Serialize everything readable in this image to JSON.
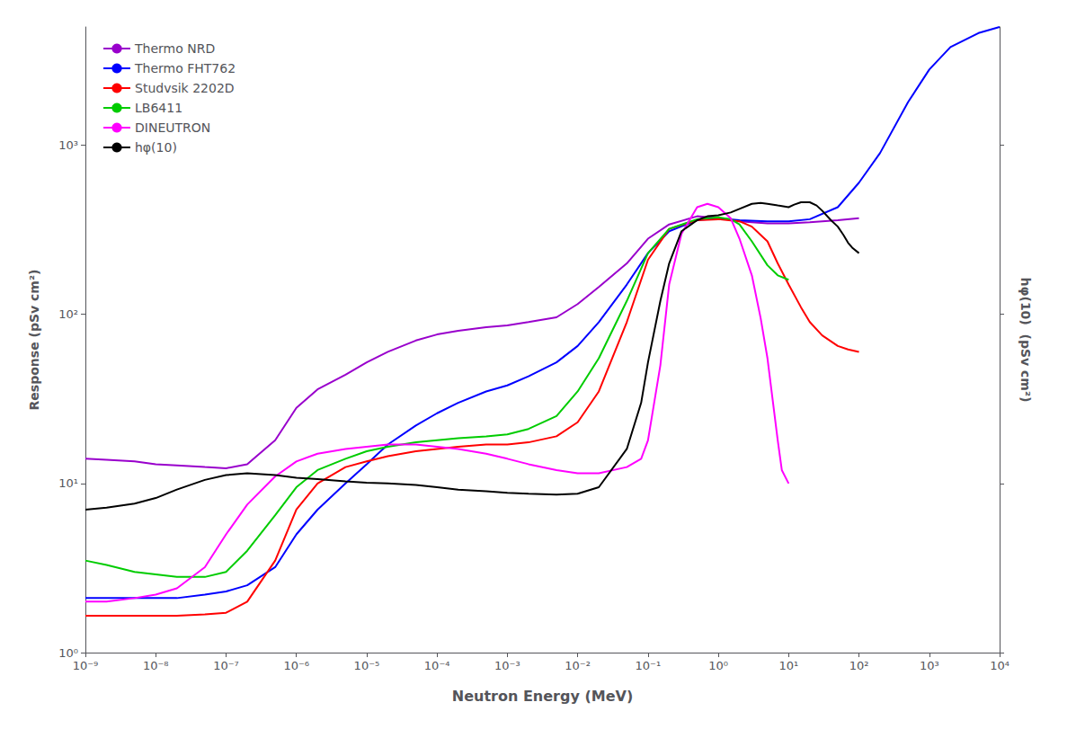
{
  "chart_data": {
    "type": "line",
    "xlabel": "Neutron Energy (MeV)",
    "ylabel": "Response (pSv cm²)",
    "y2label": "hφ(10)  (pSv cm²)",
    "log": true,
    "grid": false,
    "legend": "upper left",
    "xlim": [
      1e-09,
      10000
    ],
    "xticks": [
      {
        "value": 1e-09,
        "label": "10⁻⁹"
      },
      {
        "value": 1e-08,
        "label": "10⁻⁸"
      },
      {
        "value": 1e-07,
        "label": "10⁻⁷"
      },
      {
        "value": 1e-06,
        "label": "10⁻⁶"
      },
      {
        "value": 1e-05,
        "label": "10⁻⁵"
      },
      {
        "value": 0.0001,
        "label": "10⁻⁴"
      },
      {
        "value": 0.001,
        "label": "10⁻³"
      },
      {
        "value": 0.01,
        "label": "10⁻²"
      },
      {
        "value": 0.1,
        "label": "10⁻¹"
      },
      {
        "value": 1,
        "label": "10⁰"
      },
      {
        "value": 10,
        "label": "10¹"
      },
      {
        "value": 100,
        "label": "10²"
      },
      {
        "value": 1000,
        "label": "10³"
      },
      {
        "value": 10000,
        "label": "10⁴"
      }
    ],
    "ylim": [
      1,
      5000
    ],
    "yticks": [
      {
        "value": 1,
        "label": "10⁰"
      },
      {
        "value": 10,
        "label": "10¹"
      },
      {
        "value": 100,
        "label": "10²"
      },
      {
        "value": 1000,
        "label": "10³"
      }
    ],
    "y2lim": [
      1,
      5000
    ],
    "series": [
      {
        "name": "Thermo NRD",
        "color": "#9900cc",
        "x": [
          1e-09,
          2e-09,
          5e-09,
          1e-08,
          2e-08,
          5e-08,
          1e-07,
          2e-07,
          5e-07,
          1e-06,
          2e-06,
          5e-06,
          1e-05,
          2e-05,
          5e-05,
          0.0001,
          0.0002,
          0.0005,
          0.001,
          0.002,
          0.005,
          0.01,
          0.02,
          0.05,
          0.1,
          0.2,
          0.5,
          1.0,
          2.0,
          5.0,
          10.0,
          20.0,
          50.0,
          100.0
        ],
        "values": [
          14.0,
          13.8,
          13.5,
          13.0,
          12.8,
          12.5,
          12.3,
          13.0,
          18.0,
          28.0,
          36.0,
          44.0,
          52.0,
          60.0,
          70.0,
          76.0,
          80.0,
          84.0,
          86.0,
          90.0,
          96.0,
          115.0,
          145.0,
          200.0,
          280.0,
          340.0,
          380.0,
          370.0,
          355.0,
          345.0,
          345.0,
          350.0,
          360.0,
          370.0
        ]
      },
      {
        "name": "Thermo FHT762",
        "color": "#0000ff",
        "x": [
          1e-09,
          2e-09,
          5e-09,
          1e-08,
          2e-08,
          5e-08,
          1e-07,
          2e-07,
          5e-07,
          1e-06,
          2e-06,
          5e-06,
          1e-05,
          2e-05,
          5e-05,
          0.0001,
          0.0002,
          0.0005,
          0.001,
          0.002,
          0.005,
          0.01,
          0.02,
          0.05,
          0.1,
          0.2,
          0.5,
          1.0,
          2.0,
          5.0,
          10.0,
          20.0,
          50.0,
          100.0,
          200.0,
          500.0,
          1000.0,
          2000.0,
          5000.0,
          10000.0
        ],
        "values": [
          2.1,
          2.1,
          2.1,
          2.1,
          2.1,
          2.2,
          2.3,
          2.5,
          3.2,
          5.0,
          7.0,
          10.0,
          13.0,
          17.0,
          22.0,
          26.0,
          30.0,
          35.0,
          38.0,
          43.0,
          52.0,
          65.0,
          90.0,
          150.0,
          230.0,
          310.0,
          360.0,
          370.0,
          360.0,
          355.0,
          355.0,
          365.0,
          430.0,
          600.0,
          900.0,
          1800.0,
          2800.0,
          3800.0,
          4600.0,
          5000.0
        ]
      },
      {
        "name": "Studvsik 2202D",
        "color": "#ff0000",
        "x": [
          1e-09,
          2e-09,
          5e-09,
          1e-08,
          2e-08,
          5e-08,
          1e-07,
          2e-07,
          5e-07,
          1e-06,
          2e-06,
          5e-06,
          1e-05,
          2e-05,
          5e-05,
          0.0001,
          0.0002,
          0.0005,
          0.001,
          0.002,
          0.005,
          0.01,
          0.02,
          0.05,
          0.1,
          0.2,
          0.5,
          1.0,
          2.0,
          3.0,
          5.0,
          7.0,
          10.0,
          15.0,
          20.0,
          30.0,
          50.0,
          70.0,
          100.0
        ],
        "values": [
          1.65,
          1.65,
          1.65,
          1.65,
          1.65,
          1.68,
          1.72,
          2.0,
          3.5,
          7.0,
          10.0,
          12.5,
          13.5,
          14.5,
          15.5,
          16.0,
          16.5,
          17.0,
          17.0,
          17.5,
          19.0,
          23.0,
          35.0,
          90.0,
          210.0,
          320.0,
          360.0,
          365.0,
          355.0,
          330.0,
          270.0,
          200.0,
          150.0,
          110.0,
          90.0,
          75.0,
          65.0,
          62.0,
          60.0
        ]
      },
      {
        "name": "LB6411",
        "color": "#00cc00",
        "x": [
          1e-09,
          2e-09,
          5e-09,
          1e-08,
          2e-08,
          5e-08,
          1e-07,
          2e-07,
          5e-07,
          1e-06,
          2e-06,
          5e-06,
          1e-05,
          2e-05,
          5e-05,
          0.0001,
          0.0002,
          0.0005,
          0.001,
          0.002,
          0.005,
          0.01,
          0.02,
          0.05,
          0.1,
          0.2,
          0.5,
          1.0,
          1.5,
          2.0,
          3.0,
          5.0,
          7.0,
          10.0
        ],
        "values": [
          3.5,
          3.3,
          3.0,
          2.9,
          2.8,
          2.8,
          3.0,
          4.0,
          6.5,
          9.5,
          12.0,
          14.0,
          15.5,
          16.5,
          17.5,
          18.0,
          18.5,
          19.0,
          19.5,
          21.0,
          25.0,
          35.0,
          55.0,
          120.0,
          230.0,
          320.0,
          365.0,
          375.0,
          365.0,
          340.0,
          270.0,
          195.0,
          170.0,
          160.0
        ]
      },
      {
        "name": "DINEUTRON",
        "color": "#ff00ff",
        "x": [
          1e-09,
          2e-09,
          5e-09,
          1e-08,
          2e-08,
          5e-08,
          1e-07,
          2e-07,
          5e-07,
          1e-06,
          2e-06,
          5e-06,
          1e-05,
          2e-05,
          5e-05,
          0.0001,
          0.0002,
          0.0005,
          0.001,
          0.002,
          0.005,
          0.01,
          0.02,
          0.05,
          0.08,
          0.1,
          0.15,
          0.2,
          0.3,
          0.5,
          0.7,
          1.0,
          1.5,
          2.0,
          3.0,
          4.0,
          5.0,
          6.0,
          7.0,
          8.0,
          10.0
        ],
        "values": [
          2.0,
          2.0,
          2.1,
          2.2,
          2.4,
          3.2,
          5.0,
          7.5,
          11.0,
          13.5,
          15.0,
          16.0,
          16.5,
          17.0,
          17.0,
          16.5,
          16.0,
          15.0,
          14.0,
          13.0,
          12.0,
          11.5,
          11.5,
          12.5,
          14.0,
          18.0,
          50.0,
          150.0,
          300.0,
          430.0,
          450.0,
          430.0,
          370.0,
          280.0,
          170.0,
          95.0,
          55.0,
          30.0,
          18.0,
          12.0,
          10.0
        ]
      },
      {
        "name": "hφ(10)",
        "color": "#000000",
        "x": [
          1e-09,
          2e-09,
          5e-09,
          1e-08,
          2e-08,
          5e-08,
          1e-07,
          2e-07,
          5e-07,
          1e-06,
          2e-06,
          5e-06,
          1e-05,
          2e-05,
          5e-05,
          0.0001,
          0.0002,
          0.0005,
          0.001,
          0.002,
          0.005,
          0.01,
          0.02,
          0.05,
          0.08,
          0.1,
          0.15,
          0.2,
          0.3,
          0.5,
          0.7,
          1.0,
          1.5,
          2.0,
          3.0,
          4.0,
          5.0,
          7.0,
          10.0,
          12.0,
          15.0,
          20.0,
          25.0,
          30.0,
          40.0,
          50.0,
          60.0,
          70.0,
          80.0,
          100.0
        ],
        "values": [
          7.0,
          7.2,
          7.6,
          8.2,
          9.2,
          10.5,
          11.2,
          11.5,
          11.2,
          10.8,
          10.6,
          10.3,
          10.1,
          10.0,
          9.8,
          9.5,
          9.2,
          9.0,
          8.8,
          8.7,
          8.6,
          8.7,
          9.5,
          16.0,
          30.0,
          52.0,
          120.0,
          200.0,
          310.0,
          360.0,
          380.0,
          385.0,
          400.0,
          420.0,
          450.0,
          455.0,
          450.0,
          440.0,
          430.0,
          445.0,
          460.0,
          460.0,
          440.0,
          410.0,
          360.0,
          330.0,
          295.0,
          265.0,
          248.0,
          230.0
        ]
      }
    ]
  }
}
